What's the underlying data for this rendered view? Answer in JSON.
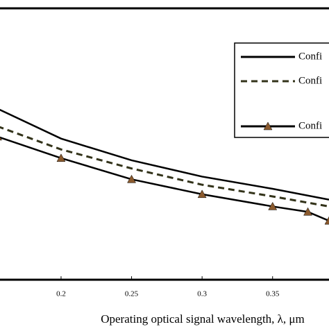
{
  "chart_data": {
    "type": "line",
    "xlabel": "Operating optical signal wavelength, λ, μm",
    "xlim": [
      0.1567,
      0.39
    ],
    "xticks": [
      0.2,
      0.25,
      0.3,
      0.35
    ],
    "ylim": [
      0,
      100
    ],
    "legend": "upper right",
    "series": [
      {
        "name": "Confi",
        "color": "#000000",
        "style": "solid",
        "x": [
          0.155,
          0.2,
          0.25,
          0.3,
          0.35,
          0.39
        ],
        "values": [
          63,
          52,
          44,
          38,
          33.5,
          29.5
        ]
      },
      {
        "name": "Confi",
        "color": "#33331a",
        "style": "dashed",
        "x": [
          0.155,
          0.2,
          0.25,
          0.3,
          0.35,
          0.39
        ],
        "values": [
          56.5,
          48,
          41,
          35,
          30.7,
          27
        ]
      },
      {
        "name": "Confi",
        "color": "#000000",
        "style": "triangle",
        "marker_color": "#8a5a2e",
        "x": [
          0.155,
          0.2,
          0.25,
          0.3,
          0.35,
          0.375,
          0.39
        ],
        "values": [
          52.7,
          44.8,
          37,
          31.5,
          27,
          25,
          21.7
        ]
      }
    ]
  }
}
